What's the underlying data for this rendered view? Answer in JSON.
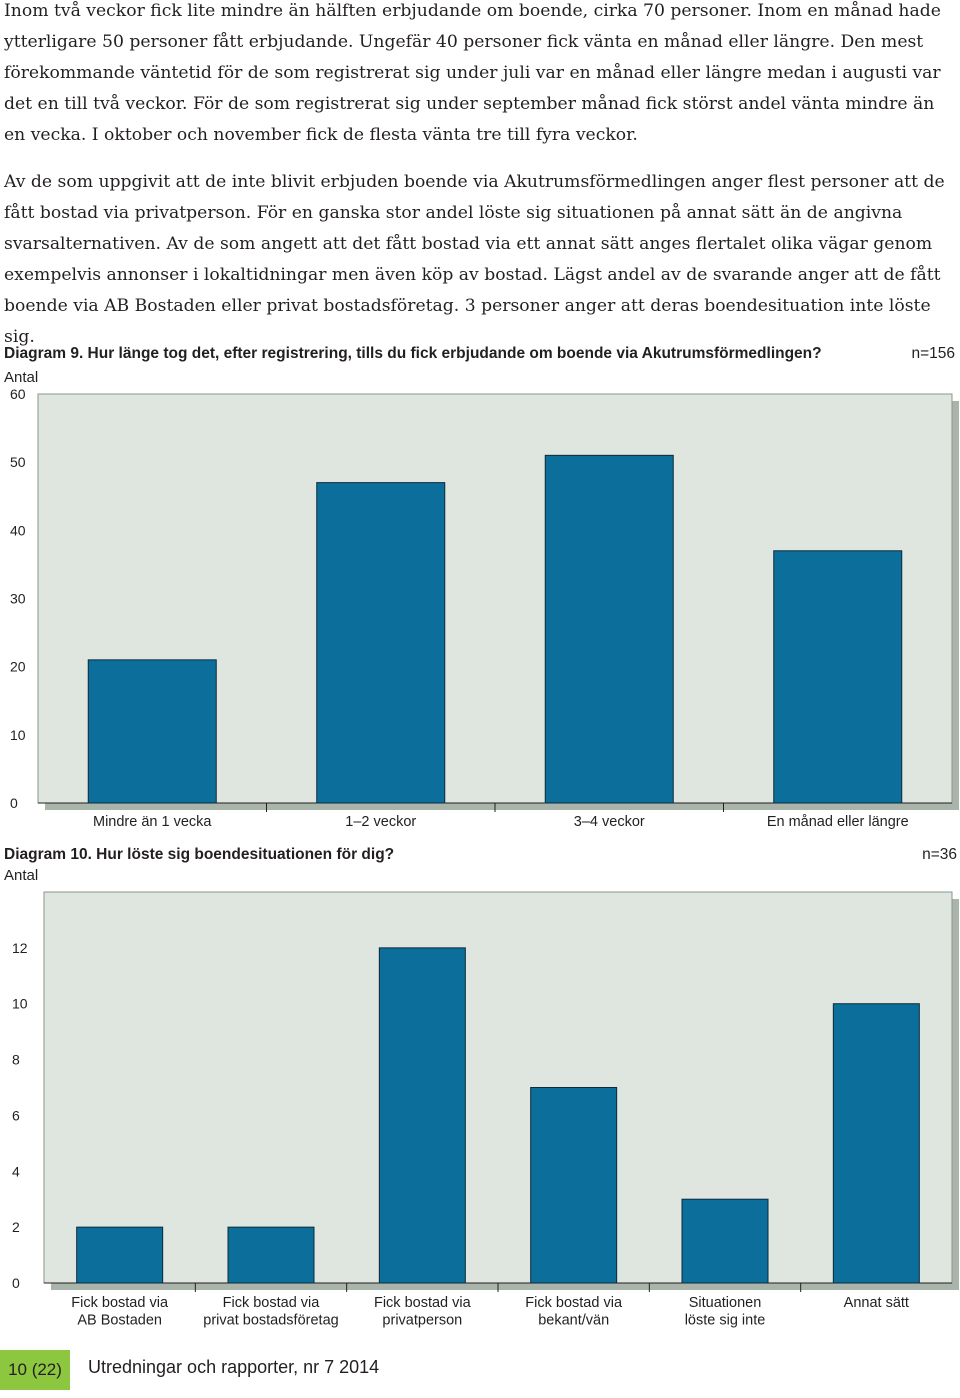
{
  "paragraphs": [
    "Inom två veckor fick lite mindre än hälften erbjudande om boende, cirka 70 personer. Inom en månad hade ytterligare 50 personer fått erbjudande. Ungefär 40 personer fick vänta en månad eller längre. Den mest förekommande väntetid för de som registrerat sig under juli var en månad eller längre medan i augusti var det en till två veckor. För de som registrerat sig under september månad fick störst andel vänta mindre än en vecka. I oktober och november fick de flesta vänta tre till fyra veckor.",
    "Av de som uppgivit att de inte blivit erbjuden boende via Akutrumsförmedlingen anger flest personer att de fått bostad via privatperson. För en ganska stor andel löste sig situationen på annat sätt än de angivna svarsalternativen. Av de som angett att det fått bostad via ett annat sätt anges flertalet olika vägar genom exempelvis annonser i lokaltidningar men även köp av bostad. Lägst andel av de svarande anger att de fått boende via AB Bostaden eller privat bostadsföretag. 3 personer anger att deras boendesituation inte löste sig."
  ],
  "chart_data": [
    {
      "type": "bar",
      "title": "Diagram 9.  Hur länge tog det, efter registrering, tills du fick erbjudande om boende via Akutrumsförmedlingen?",
      "n_label": "n=156",
      "ylabel": "Antal",
      "ylim": [
        0,
        60
      ],
      "yticks": [
        "0",
        "10",
        "20",
        "30",
        "40",
        "50",
        "60"
      ],
      "categories": [
        [
          "Mindre än 1 vecka"
        ],
        [
          "1–2 veckor"
        ],
        [
          "3–4 veckor"
        ],
        [
          "En månad eller längre"
        ]
      ],
      "values": [
        21,
        47,
        51,
        37
      ],
      "grid": false
    },
    {
      "type": "bar",
      "title": "Diagram 10. Hur löste sig boendesituationen för dig?",
      "n_label": "n=36",
      "ylabel": "Antal",
      "ylim": [
        0,
        14
      ],
      "yticks": [
        "0",
        "2",
        "4",
        "6",
        "8",
        "10",
        "12"
      ],
      "categories": [
        [
          "Fick bostad via",
          "AB Bostaden"
        ],
        [
          "Fick bostad via",
          "privat bostadsföretag"
        ],
        [
          "Fick bostad via",
          "privatperson"
        ],
        [
          "Fick bostad via",
          "bekant/vän"
        ],
        [
          "Situationen",
          "löste sig inte"
        ],
        [
          "Annat sätt"
        ]
      ],
      "values": [
        2,
        2,
        12,
        7,
        3,
        10
      ],
      "grid": false
    }
  ],
  "colors": {
    "bar": "#0b6e9b",
    "bar_outline": "#0d2a3a",
    "plot_bg": "#dfe6df",
    "plot_shadow": "#a9b4ab",
    "footer_accent": "#8dc63f"
  },
  "footer": {
    "page": "10 (22)",
    "publication": "Utredningar och rapporter, nr 7 2014"
  }
}
